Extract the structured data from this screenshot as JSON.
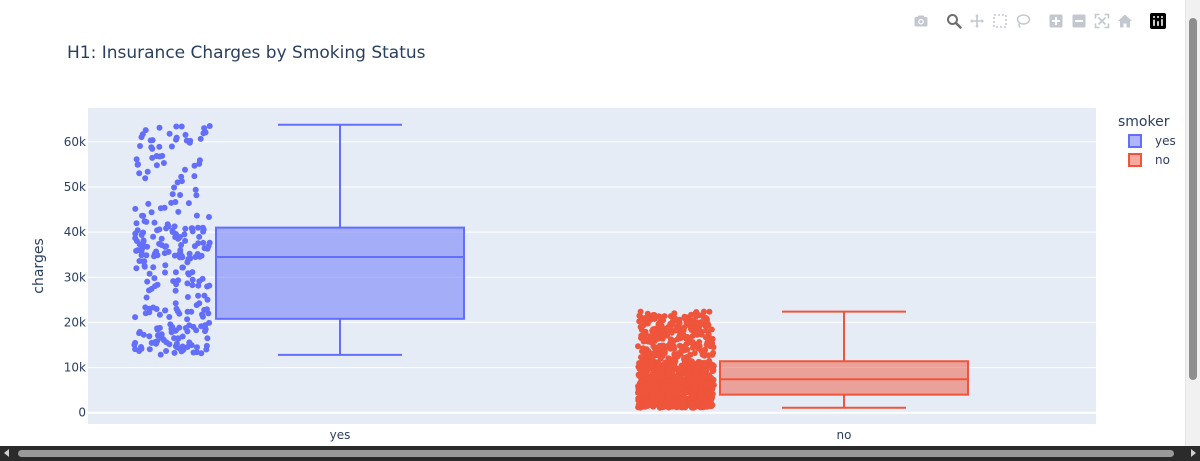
{
  "chart_data": {
    "type": "box",
    "title": "H1: Insurance Charges by Smoking Status",
    "xlabel": "",
    "ylabel": "charges",
    "ylim": [
      -2500,
      67500
    ],
    "yticks": [
      0,
      10000,
      20000,
      30000,
      40000,
      50000,
      60000
    ],
    "ytick_labels": [
      "0",
      "10k",
      "20k",
      "30k",
      "40k",
      "50k",
      "60k"
    ],
    "categories": [
      "yes",
      "no"
    ],
    "legend": {
      "title": "smoker",
      "position": "top-right"
    },
    "points_shown": "all (jittered)",
    "series": [
      {
        "name": "yes",
        "color": "#636efa",
        "box": {
          "lowerfence": 12800,
          "q1": 20800,
          "median": 34500,
          "q3": 41000,
          "upperfence": 63800
        },
        "point_count": 274,
        "outliers": []
      },
      {
        "name": "no",
        "color": "#ef553b",
        "box": {
          "lowerfence": 1100,
          "q1": 4000,
          "median": 7400,
          "q3": 11400,
          "upperfence": 22400
        },
        "point_count": 1064,
        "outliers": []
      }
    ]
  },
  "modebar": {
    "buttons": [
      "camera-icon",
      "zoom-icon",
      "pan-icon",
      "box-select-icon",
      "lasso-icon",
      "zoom-in-icon",
      "zoom-out-icon",
      "autoscale-icon",
      "reset-axes-icon",
      "plotly-logo-icon"
    ]
  }
}
